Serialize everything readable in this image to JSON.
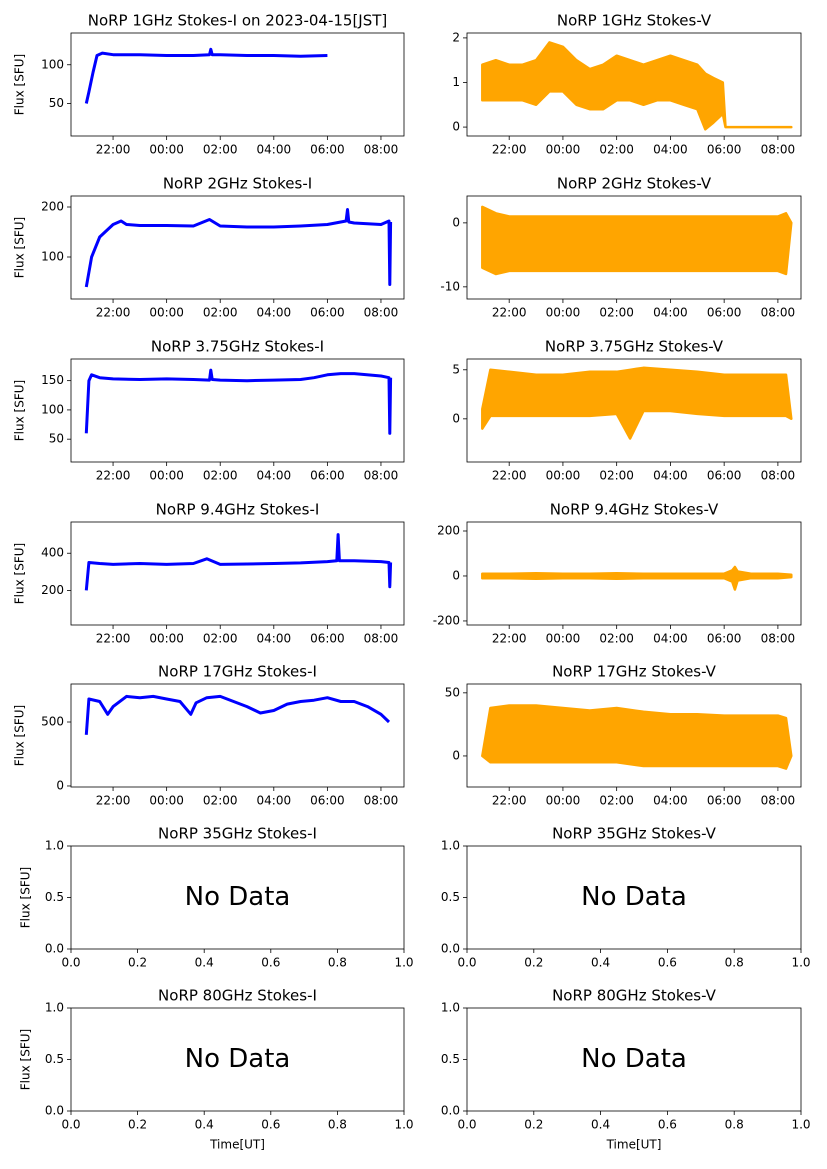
{
  "chart_data": [
    {
      "type": "line",
      "title": "NoRP 1GHz Stokes-I on 2023-04-15[JST]",
      "ylabel": "Flux [SFU]",
      "color": "#0000ff",
      "x": [
        21.0,
        21.1,
        21.25,
        21.4,
        21.6,
        22,
        23,
        24,
        25,
        25.6,
        25.65,
        25.7,
        26,
        27,
        28,
        29,
        30
      ],
      "values": [
        50,
        65,
        90,
        112,
        115,
        113,
        113,
        112,
        112,
        113,
        120,
        113,
        113,
        112,
        112,
        111,
        112
      ],
      "xlim": [
        20.43,
        32.86
      ],
      "ylim": [
        8,
        141
      ],
      "yticks": [
        50,
        100
      ],
      "xticks": [
        {
          "value": 22,
          "label": "22:00"
        },
        {
          "value": 24,
          "label": "00:00"
        },
        {
          "value": 26,
          "label": "02:00"
        },
        {
          "value": 28,
          "label": "04:00"
        },
        {
          "value": 30,
          "label": "06:00"
        },
        {
          "value": 32,
          "label": "08:00"
        }
      ]
    },
    {
      "type": "band",
      "title": "NoRP 1GHz Stokes-V",
      "color": "#ffa500",
      "x": [
        21.0,
        21.5,
        22,
        22.5,
        23,
        23.5,
        24,
        24.5,
        25,
        25.5,
        26,
        26.5,
        27,
        27.5,
        28,
        28.5,
        29,
        29.3,
        29.6,
        29.95,
        30.05,
        32.5
      ],
      "high": [
        1.4,
        1.5,
        1.4,
        1.4,
        1.5,
        1.9,
        1.8,
        1.5,
        1.3,
        1.4,
        1.6,
        1.5,
        1.4,
        1.5,
        1.6,
        1.5,
        1.4,
        1.2,
        1.1,
        1.0,
        0,
        0
      ],
      "low": [
        0.6,
        0.6,
        0.6,
        0.6,
        0.5,
        0.8,
        0.8,
        0.5,
        0.4,
        0.4,
        0.6,
        0.6,
        0.5,
        0.6,
        0.6,
        0.5,
        0.4,
        -0.05,
        0.1,
        0.3,
        0,
        0
      ],
      "xlim": [
        20.43,
        32.86
      ],
      "ylim": [
        -0.2,
        2.11
      ],
      "yticks": [
        0,
        1,
        2
      ],
      "xticks": [
        {
          "value": 22,
          "label": "22:00"
        },
        {
          "value": 24,
          "label": "00:00"
        },
        {
          "value": 26,
          "label": "02:00"
        },
        {
          "value": 28,
          "label": "04:00"
        },
        {
          "value": 30,
          "label": "06:00"
        },
        {
          "value": 32,
          "label": "08:00"
        }
      ]
    },
    {
      "type": "line",
      "title": "NoRP 2GHz Stokes-I",
      "ylabel": "Flux [SFU]",
      "color": "#0000ff",
      "x": [
        21.0,
        21.2,
        21.5,
        22,
        22.3,
        22.5,
        23,
        24,
        25,
        25.6,
        26,
        27,
        28,
        29,
        30,
        30.7,
        30.75,
        30.8,
        31,
        32,
        32.3,
        32.33,
        32.36
      ],
      "values": [
        40,
        100,
        140,
        165,
        172,
        165,
        163,
        163,
        162,
        175,
        162,
        160,
        160,
        162,
        165,
        172,
        195,
        170,
        168,
        165,
        172,
        45,
        170
      ],
      "xlim": [
        20.43,
        32.86
      ],
      "ylim": [
        16,
        222
      ],
      "yticks": [
        100,
        200
      ],
      "xticks": [
        {
          "value": 22,
          "label": "22:00"
        },
        {
          "value": 24,
          "label": "00:00"
        },
        {
          "value": 26,
          "label": "02:00"
        },
        {
          "value": 28,
          "label": "04:00"
        },
        {
          "value": 30,
          "label": "06:00"
        },
        {
          "value": 32,
          "label": "08:00"
        }
      ]
    },
    {
      "type": "band",
      "title": "NoRP 2GHz Stokes-V",
      "color": "#ffa500",
      "x": [
        21.0,
        21.5,
        22,
        23,
        24,
        25,
        26,
        27,
        28,
        29,
        30,
        31,
        32,
        32.3,
        32.5
      ],
      "high": [
        2.5,
        1.5,
        1,
        1,
        1,
        1,
        1,
        1,
        1,
        1,
        1,
        1,
        1,
        1.5,
        0
      ],
      "low": [
        -7,
        -8,
        -7.5,
        -7.5,
        -7.5,
        -7.5,
        -7.5,
        -7.5,
        -7.5,
        -7.5,
        -7.5,
        -7.5,
        -7.5,
        -8,
        0
      ],
      "xlim": [
        20.43,
        32.86
      ],
      "ylim": [
        -11.9,
        4.2
      ],
      "yticks": [
        -10,
        0
      ],
      "xticks": [
        {
          "value": 22,
          "label": "22:00"
        },
        {
          "value": 24,
          "label": "00:00"
        },
        {
          "value": 26,
          "label": "02:00"
        },
        {
          "value": 28,
          "label": "04:00"
        },
        {
          "value": 30,
          "label": "06:00"
        },
        {
          "value": 32,
          "label": "08:00"
        }
      ]
    },
    {
      "type": "line",
      "title": "NoRP 3.75GHz Stokes-I",
      "ylabel": "Flux [SFU]",
      "color": "#0000ff",
      "x": [
        21.0,
        21.1,
        21.2,
        21.5,
        22,
        23,
        24,
        25,
        25.6,
        25.65,
        25.7,
        26,
        27,
        28,
        29,
        29.5,
        30,
        30.5,
        31,
        32,
        32.3,
        32.33,
        32.36
      ],
      "values": [
        60,
        150,
        160,
        155,
        153,
        152,
        153,
        152,
        151,
        168,
        152,
        151,
        150,
        151,
        152,
        155,
        160,
        162,
        162,
        158,
        155,
        60,
        155
      ],
      "xlim": [
        20.43,
        32.86
      ],
      "ylim": [
        11,
        187
      ],
      "yticks": [
        50,
        100,
        150
      ],
      "xticks": [
        {
          "value": 22,
          "label": "22:00"
        },
        {
          "value": 24,
          "label": "00:00"
        },
        {
          "value": 26,
          "label": "02:00"
        },
        {
          "value": 28,
          "label": "04:00"
        },
        {
          "value": 30,
          "label": "06:00"
        },
        {
          "value": 32,
          "label": "08:00"
        }
      ]
    },
    {
      "type": "band",
      "title": "NoRP 3.75GHz Stokes-V",
      "color": "#ffa500",
      "x": [
        21.0,
        21.3,
        22,
        23,
        24,
        25,
        26,
        26.5,
        27,
        28,
        29,
        30,
        31,
        32,
        32.3,
        32.5
      ],
      "high": [
        1,
        5,
        4.8,
        4.5,
        4.5,
        4.8,
        4.8,
        5,
        5.2,
        5,
        4.8,
        4.5,
        4.5,
        4.5,
        4.5,
        0
      ],
      "low": [
        -1,
        0.3,
        0.3,
        0.3,
        0.3,
        0.3,
        0.5,
        -2,
        0.8,
        0.8,
        0.5,
        0.3,
        0.3,
        0.3,
        0.3,
        0
      ],
      "xlim": [
        20.43,
        32.86
      ],
      "ylim": [
        -4.4,
        6.1
      ],
      "yticks": [
        0,
        5
      ],
      "xticks": [
        {
          "value": 22,
          "label": "22:00"
        },
        {
          "value": 24,
          "label": "00:00"
        },
        {
          "value": 26,
          "label": "02:00"
        },
        {
          "value": 28,
          "label": "04:00"
        },
        {
          "value": 30,
          "label": "06:00"
        },
        {
          "value": 32,
          "label": "08:00"
        }
      ]
    },
    {
      "type": "line",
      "title": "NoRP 9.4GHz Stokes-I",
      "ylabel": "Flux [SFU]",
      "color": "#0000ff",
      "x": [
        21.0,
        21.1,
        21.5,
        22,
        23,
        24,
        25,
        25.5,
        26,
        27,
        28,
        29,
        30,
        30.35,
        30.4,
        30.45,
        31,
        32,
        32.3,
        32.33,
        32.36
      ],
      "values": [
        200,
        350,
        345,
        340,
        345,
        340,
        345,
        370,
        340,
        342,
        345,
        348,
        355,
        360,
        500,
        360,
        360,
        355,
        350,
        220,
        350
      ],
      "xlim": [
        20.43,
        32.86
      ],
      "ylim": [
        14,
        568
      ],
      "yticks": [
        200,
        400
      ],
      "xticks": [
        {
          "value": 22,
          "label": "22:00"
        },
        {
          "value": 24,
          "label": "00:00"
        },
        {
          "value": 26,
          "label": "02:00"
        },
        {
          "value": 28,
          "label": "04:00"
        },
        {
          "value": 30,
          "label": "06:00"
        },
        {
          "value": 32,
          "label": "08:00"
        }
      ]
    },
    {
      "type": "band",
      "title": "NoRP 9.4GHz Stokes-V",
      "color": "#ffa500",
      "x": [
        21.0,
        22,
        23,
        24,
        25,
        26,
        27,
        28,
        29,
        30,
        30.3,
        30.4,
        30.5,
        31,
        32,
        32.5
      ],
      "high": [
        10,
        10,
        12,
        10,
        10,
        12,
        10,
        10,
        10,
        10,
        25,
        40,
        20,
        10,
        10,
        5
      ],
      "low": [
        -10,
        -10,
        -12,
        -10,
        -10,
        -12,
        -10,
        -10,
        -10,
        -10,
        -25,
        -60,
        -20,
        -10,
        -10,
        -5
      ],
      "xlim": [
        20.43,
        32.86
      ],
      "ylim": [
        -218,
        240
      ],
      "yticks": [
        -200,
        0,
        200
      ],
      "xticks": [
        {
          "value": 22,
          "label": "22:00"
        },
        {
          "value": 24,
          "label": "00:00"
        },
        {
          "value": 26,
          "label": "02:00"
        },
        {
          "value": 28,
          "label": "04:00"
        },
        {
          "value": 30,
          "label": "06:00"
        },
        {
          "value": 32,
          "label": "08:00"
        }
      ]
    },
    {
      "type": "line",
      "title": "NoRP 17GHz Stokes-I",
      "ylabel": "Flux [SFU]",
      "color": "#0000ff",
      "x": [
        21.0,
        21.1,
        21.5,
        21.8,
        22,
        22.5,
        23,
        23.5,
        24,
        24.5,
        24.9,
        25.1,
        25.5,
        26,
        26.5,
        27,
        27.5,
        28,
        28.5,
        29,
        29.5,
        30,
        30.5,
        31,
        31.5,
        32,
        32.3
      ],
      "values": [
        400,
        680,
        660,
        560,
        620,
        700,
        690,
        700,
        680,
        660,
        560,
        650,
        690,
        700,
        660,
        620,
        570,
        590,
        640,
        660,
        670,
        690,
        660,
        660,
        620,
        560,
        500
      ],
      "xlim": [
        20.43,
        32.86
      ],
      "ylim": [
        -8,
        797
      ],
      "yticks": [
        0,
        500
      ],
      "xticks": [
        {
          "value": 22,
          "label": "22:00"
        },
        {
          "value": 24,
          "label": "00:00"
        },
        {
          "value": 26,
          "label": "02:00"
        },
        {
          "value": 28,
          "label": "04:00"
        },
        {
          "value": 30,
          "label": "06:00"
        },
        {
          "value": 32,
          "label": "08:00"
        }
      ]
    },
    {
      "type": "band",
      "title": "NoRP 17GHz Stokes-V",
      "color": "#ffa500",
      "x": [
        21.0,
        21.3,
        22,
        23,
        24,
        25,
        26,
        27,
        28,
        29,
        30,
        31,
        32,
        32.3,
        32.5
      ],
      "high": [
        0,
        38,
        40,
        40,
        38,
        36,
        38,
        35,
        33,
        33,
        32,
        32,
        32,
        30,
        0
      ],
      "low": [
        0,
        -5,
        -5,
        -5,
        -5,
        -5,
        -5,
        -8,
        -8,
        -8,
        -8,
        -8,
        -8,
        -10,
        0
      ],
      "xlim": [
        20.43,
        32.86
      ],
      "ylim": [
        -24.6,
        57
      ],
      "yticks": [
        0,
        50
      ],
      "xticks": [
        {
          "value": 22,
          "label": "22:00"
        },
        {
          "value": 24,
          "label": "00:00"
        },
        {
          "value": 26,
          "label": "02:00"
        },
        {
          "value": 28,
          "label": "04:00"
        },
        {
          "value": 30,
          "label": "06:00"
        },
        {
          "value": 32,
          "label": "08:00"
        }
      ]
    },
    {
      "type": "empty",
      "title": "NoRP 35GHz Stokes-I",
      "ylabel": "Flux [SFU]",
      "annotation": "No Data",
      "xlim": [
        0,
        1
      ],
      "ylim": [
        0,
        1
      ],
      "xticks": [
        {
          "value": 0,
          "label": "0.0"
        },
        0.2,
        0.4,
        0.6,
        0.8,
        {
          "value": 1,
          "label": "1.0"
        }
      ],
      "yticks": [
        {
          "value": 0,
          "label": "0.0"
        },
        0.5,
        {
          "value": 1,
          "label": "1.0"
        }
      ]
    },
    {
      "type": "empty",
      "title": "NoRP 35GHz Stokes-V",
      "annotation": "No Data",
      "xlim": [
        0,
        1
      ],
      "ylim": [
        0,
        1
      ],
      "xticks": [
        {
          "value": 0,
          "label": "0.0"
        },
        0.2,
        0.4,
        0.6,
        0.8,
        {
          "value": 1,
          "label": "1.0"
        }
      ],
      "yticks": [
        {
          "value": 0,
          "label": "0.0"
        },
        0.5,
        {
          "value": 1,
          "label": "1.0"
        }
      ]
    },
    {
      "type": "empty",
      "title": "NoRP 80GHz Stokes-I",
      "ylabel": "Flux [SFU]",
      "xlabel": "Time[UT]",
      "annotation": "No Data",
      "xlim": [
        0,
        1
      ],
      "ylim": [
        0,
        1
      ],
      "xticks": [
        {
          "value": 0,
          "label": "0.0"
        },
        0.2,
        0.4,
        0.6,
        0.8,
        {
          "value": 1,
          "label": "1.0"
        }
      ],
      "yticks": [
        {
          "value": 0,
          "label": "0.0"
        },
        0.5,
        {
          "value": 1,
          "label": "1.0"
        }
      ]
    },
    {
      "type": "empty",
      "title": "NoRP 80GHz Stokes-V",
      "xlabel": "Time[UT]",
      "annotation": "No Data",
      "xlim": [
        0,
        1
      ],
      "ylim": [
        0,
        1
      ],
      "xticks": [
        {
          "value": 0,
          "label": "0.0"
        },
        0.2,
        0.4,
        0.6,
        0.8,
        {
          "value": 1,
          "label": "1.0"
        }
      ],
      "yticks": [
        {
          "value": 0,
          "label": "0.0"
        },
        0.5,
        {
          "value": 1,
          "label": "1.0"
        }
      ]
    }
  ]
}
